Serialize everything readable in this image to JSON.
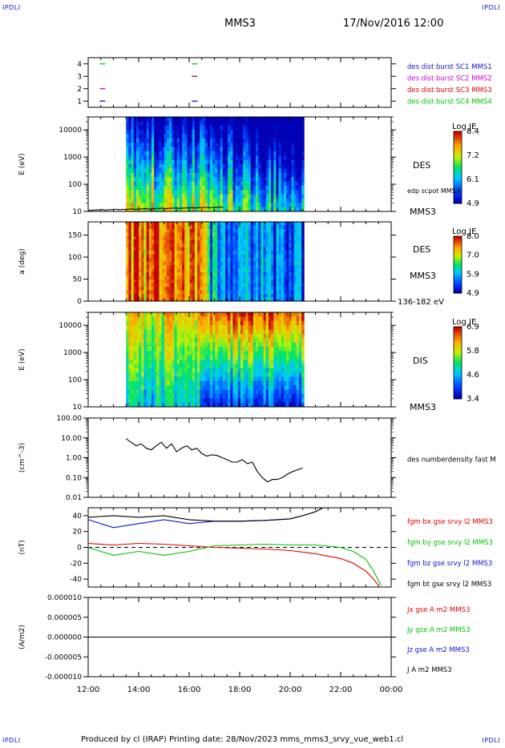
{
  "corner_tl": "IPDLI",
  "corner_tr": "IPDLI",
  "corner_bl": "IPDLI",
  "corner_br": "IPDLI",
  "header": {
    "spacecraft": "MMS3",
    "datetime": "17/Nov/2016 12:00"
  },
  "footer": "Produced by cl (IRAP)   Printing date: 28/Nov/2023   mms_mms3_srvy_vue_web1.cl",
  "colors": {
    "blue": "#1010d0",
    "magenta": "#d000d0",
    "red": "#e00000",
    "green": "#00c000",
    "black": "#000000"
  },
  "chart_data": [
    {
      "type": "scatter",
      "title": "",
      "ylabel": "",
      "ylim": [
        0.5,
        4.5
      ],
      "yticks": [
        "1",
        "2",
        "3",
        "4"
      ],
      "legend": [
        {
          "name": "des dist burst SC1 MMS1",
          "color": "#1010d0"
        },
        {
          "name": "des dist burst SC2 MMS2",
          "color": "#d000d0"
        },
        {
          "name": "des dist burst SC3 MMS3",
          "color": "#e00000"
        },
        {
          "name": "des dist burst SC4 MMS4",
          "color": "#00c000"
        }
      ],
      "marks": [
        {
          "x": 12.55,
          "y": 4,
          "color": "#00c000"
        },
        {
          "x": 12.55,
          "y": 2,
          "color": "#d000d0"
        },
        {
          "x": 12.55,
          "y": 1,
          "color": "#1010d0"
        },
        {
          "x": 16.2,
          "y": 4,
          "color": "#00c000"
        },
        {
          "x": 16.2,
          "y": 3,
          "color": "#e00000"
        },
        {
          "x": 16.2,
          "y": 1,
          "color": "#1010d0"
        }
      ]
    },
    {
      "type": "heatmap",
      "ylabel": "E (eV)",
      "yscale": "log",
      "ylim": [
        10,
        30000
      ],
      "yticks": [
        "10",
        "100",
        "1000",
        "10000"
      ],
      "labels": [
        "DES",
        "MMS3"
      ],
      "overlay_label": "edp scpot MMS3",
      "colorbar": {
        "title": "Log JE",
        "ticks": [
          "8.4",
          "7.2",
          "6.1",
          "4.9"
        ]
      },
      "x_range": [
        13.5,
        20.55
      ]
    },
    {
      "type": "heatmap",
      "ylabel": "a (deg)",
      "ylim": [
        0,
        180
      ],
      "yticks": [
        "0",
        "50",
        "100",
        "150"
      ],
      "labels": [
        "DES",
        "MMS3",
        "136-182 eV"
      ],
      "colorbar": {
        "title": "Log JE",
        "ticks": [
          "8.0",
          "7.0",
          "5.9",
          "4.9"
        ]
      },
      "x_range": [
        13.5,
        20.55
      ]
    },
    {
      "type": "heatmap",
      "ylabel": "E (eV)",
      "yscale": "log",
      "ylim": [
        10,
        30000
      ],
      "yticks": [
        "10",
        "100",
        "1000",
        "10000"
      ],
      "labels": [
        "DIS",
        "MMS3"
      ],
      "colorbar": {
        "title": "Log JE",
        "ticks": [
          "6.9",
          "5.8",
          "4.6",
          "3.4"
        ]
      },
      "x_range": [
        13.5,
        20.55
      ]
    },
    {
      "type": "line",
      "ylabel": "(cm^-3)",
      "yscale": "log",
      "ylim": [
        0.01,
        100
      ],
      "yticks": [
        "0.01",
        "0.10",
        "1.00",
        "10.00",
        "100.00"
      ],
      "series": [
        {
          "name": "des numberdensity fast M",
          "color": "#000000",
          "x": [
            13.5,
            13.7,
            13.9,
            14.1,
            14.3,
            14.5,
            14.7,
            14.9,
            15.1,
            15.3,
            15.5,
            15.7,
            15.9,
            16.1,
            16.3,
            16.5,
            16.7,
            16.9,
            17.1,
            17.3,
            17.5,
            17.7,
            17.9,
            18.1,
            18.3,
            18.5,
            18.7,
            18.9,
            19.1,
            19.3,
            19.5,
            19.7,
            19.9,
            20.1,
            20.3,
            20.5
          ],
          "y": [
            9,
            6,
            4,
            5,
            3,
            2.5,
            4,
            6,
            3,
            5,
            2,
            3,
            4,
            2.5,
            3,
            1.6,
            1.2,
            1.4,
            1.3,
            1,
            0.8,
            0.6,
            0.6,
            0.8,
            0.5,
            0.6,
            0.2,
            0.1,
            0.06,
            0.08,
            0.08,
            0.1,
            0.15,
            0.2,
            0.25,
            0.3
          ]
        }
      ]
    },
    {
      "type": "line",
      "ylabel": "(nT)",
      "ylim": [
        -50,
        50
      ],
      "yticks": [
        "-40",
        "-20",
        "0",
        "20",
        "40"
      ],
      "series": [
        {
          "name": "fgm bx gse srvy l2 MMS3",
          "color": "#e00000",
          "x": [
            12,
            13,
            14,
            15,
            16,
            17,
            18,
            19,
            20,
            21,
            22,
            22.5,
            23,
            23.3,
            23.5
          ],
          "y": [
            5,
            3,
            5,
            4,
            2,
            0,
            -1,
            -2,
            -4,
            -8,
            -14,
            -20,
            -30,
            -40,
            -48
          ]
        },
        {
          "name": "fgm by gse srvy l2 MMS3",
          "color": "#00c000",
          "x": [
            12,
            13,
            14,
            15,
            16,
            17,
            18,
            19,
            20,
            21,
            22,
            22.5,
            23,
            23.3,
            23.6
          ],
          "y": [
            0,
            -10,
            -5,
            -10,
            -5,
            2,
            3,
            4,
            3,
            3,
            0,
            -5,
            -15,
            -30,
            -48
          ]
        },
        {
          "name": "fgm bz gse srvy l2 MMS3",
          "color": "#1010d0",
          "x": [
            12,
            13,
            14,
            15,
            16,
            17,
            18,
            19,
            20,
            20.5,
            21,
            21.3
          ],
          "y": [
            35,
            25,
            30,
            35,
            30,
            33,
            33,
            34,
            36,
            40,
            45,
            50
          ]
        },
        {
          "name": "fgm bt gse srvy l2 MMS3",
          "color": "#000000",
          "x": [
            12,
            13,
            14,
            15,
            16,
            17,
            18,
            19,
            20,
            20.5,
            21,
            21.3
          ],
          "y": [
            38,
            40,
            38,
            40,
            35,
            33,
            33,
            34,
            36,
            40,
            45,
            50
          ]
        }
      ]
    },
    {
      "type": "line",
      "ylabel": "(A/m2)",
      "ylim": [
        -1e-05,
        1e-05
      ],
      "yticks": [
        "-0.000010",
        "-0.000005",
        "0.000000",
        "0.000005",
        "0.000010"
      ],
      "series": [
        {
          "name": "Jx gse A m2 MMS3",
          "color": "#e00000",
          "x": [
            12,
            24
          ],
          "y": [
            0,
            0
          ]
        },
        {
          "name": "Jy gse A m2 MMS3",
          "color": "#00c000",
          "x": [
            12,
            24
          ],
          "y": [
            0,
            0
          ]
        },
        {
          "name": "Jz gse A m2 MMS3",
          "color": "#1010d0",
          "x": [
            12,
            24
          ],
          "y": [
            0,
            0
          ]
        },
        {
          "name": "J A m2 MMS3",
          "color": "#000000",
          "x": [
            12,
            24
          ],
          "y": [
            0,
            0
          ]
        }
      ]
    }
  ],
  "x_axis": {
    "ticks": [
      "12:00",
      "14:00",
      "16:00",
      "18:00",
      "20:00",
      "22:00",
      "00:00"
    ]
  }
}
